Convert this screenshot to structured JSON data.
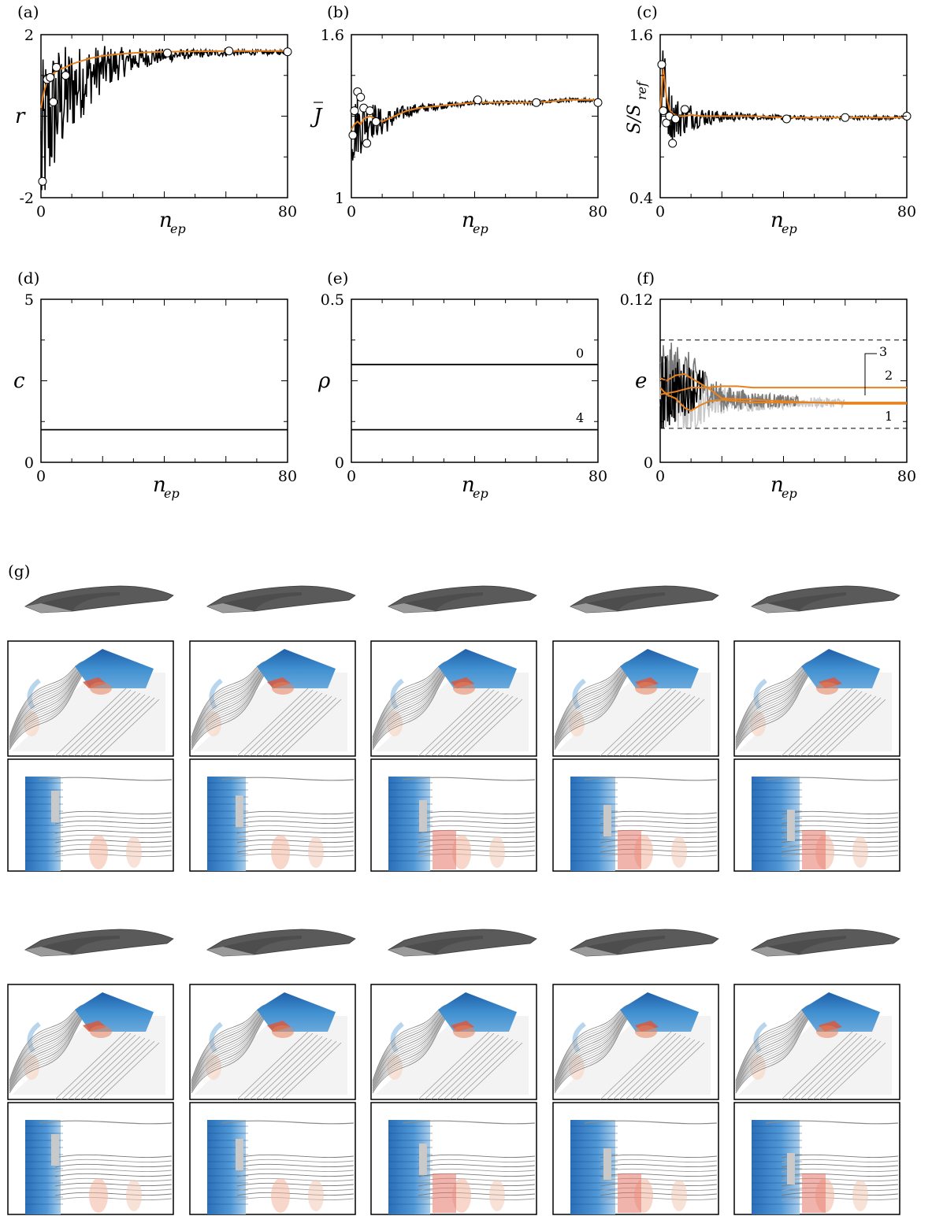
{
  "figure": {
    "colors": {
      "raw": "#000000",
      "avg": "#e8821e",
      "gray1": "#777777",
      "gray2": "#c8c8c8",
      "marker_fill": "#ffffff"
    },
    "g_label": "(g)"
  },
  "chart_data": [
    {
      "id": "a",
      "type": "line",
      "panel_label": "(a)",
      "ylabel": "r",
      "xlabel": "n",
      "xlabel_sub": "ep",
      "xlim": [
        0,
        80
      ],
      "ylim": [
        -2,
        2
      ],
      "xticks": [
        "0",
        "80"
      ],
      "yticks": [
        "-2",
        "2"
      ],
      "series": [
        {
          "x": [
            0,
            1,
            2,
            3,
            4,
            6,
            8,
            10,
            13,
            16,
            20,
            25,
            30,
            35,
            40,
            50,
            60,
            70,
            80
          ],
          "values": [
            0.2,
            0.6,
            0.85,
            0.95,
            1.05,
            1.15,
            1.2,
            1.28,
            1.35,
            1.42,
            1.48,
            1.52,
            1.55,
            1.57,
            1.58,
            1.59,
            1.6,
            1.6,
            1.6
          ]
        }
      ],
      "markers": {
        "x": [
          0.5,
          2,
          3,
          4,
          5,
          8,
          41,
          61,
          80
        ],
        "values": [
          -1.6,
          0.9,
          0.95,
          0.35,
          1.2,
          1.0,
          1.55,
          1.6,
          1.58
        ]
      }
    },
    {
      "id": "b",
      "type": "line",
      "panel_label": "(b)",
      "ylabel": "J",
      "xlabel": "n",
      "xlabel_sub": "ep",
      "xlim": [
        0,
        80
      ],
      "ylim": [
        1,
        1.6
      ],
      "xticks": [
        "0",
        "80"
      ],
      "yticks": [
        "1",
        "1.6"
      ],
      "series": [
        {
          "x": [
            0,
            1,
            2,
            3,
            4,
            6,
            8,
            10,
            14,
            18,
            22,
            30,
            40,
            50,
            60,
            70,
            80
          ],
          "values": [
            1.25,
            1.27,
            1.28,
            1.27,
            1.29,
            1.3,
            1.29,
            1.28,
            1.3,
            1.32,
            1.33,
            1.34,
            1.35,
            1.35,
            1.35,
            1.36,
            1.36
          ]
        }
      ],
      "markers": {
        "x": [
          0.5,
          1,
          2,
          3,
          4,
          5,
          6,
          8,
          41,
          60,
          80
        ],
        "values": [
          1.23,
          1.32,
          1.39,
          1.37,
          1.33,
          1.2,
          1.32,
          1.28,
          1.36,
          1.35,
          1.35
        ]
      }
    },
    {
      "id": "c",
      "type": "line",
      "panel_label": "(c)",
      "ylabel": "S/S",
      "ylabel_sub": "ref",
      "xlabel": "n",
      "xlabel_sub": "ep",
      "xlim": [
        0,
        80
      ],
      "ylim": [
        0.4,
        1.6
      ],
      "xticks": [
        "0",
        "80"
      ],
      "yticks": [
        "0.4",
        "1.6"
      ],
      "series": [
        {
          "x": [
            0,
            1,
            2,
            3,
            4,
            6,
            8,
            10,
            14,
            20,
            30,
            40,
            50,
            60,
            70,
            80
          ],
          "values": [
            1.05,
            1.35,
            1.15,
            1.05,
            1.02,
            1.0,
            1.0,
            1.01,
            1.0,
            1.0,
            1.0,
            0.99,
            0.99,
            0.99,
            0.99,
            0.99
          ]
        }
      ],
      "markers": {
        "x": [
          0.5,
          1,
          2,
          3,
          4,
          5,
          8,
          41,
          60,
          80
        ],
        "values": [
          1.38,
          1.04,
          0.95,
          1.0,
          0.8,
          0.98,
          1.05,
          0.98,
          0.99,
          1.0
        ]
      }
    },
    {
      "id": "d",
      "type": "line",
      "panel_label": "(d)",
      "ylabel": "c",
      "xlabel": "n",
      "xlabel_sub": "ep",
      "xlim": [
        0,
        80
      ],
      "ylim": [
        0,
        5
      ],
      "xticks": [
        "0",
        "80"
      ],
      "yticks": [
        "0",
        "5"
      ],
      "series": [
        {
          "x": [
            0,
            80
          ],
          "values": [
            1,
            1
          ]
        }
      ]
    },
    {
      "id": "e",
      "type": "line",
      "panel_label": "(e)",
      "ylabel": "ρ",
      "xlabel": "n",
      "xlabel_sub": "ep",
      "xlim": [
        0,
        80
      ],
      "ylim": [
        0,
        0.5
      ],
      "xticks": [
        "0",
        "80"
      ],
      "yticks": [
        "0",
        "0.5"
      ],
      "series": [
        {
          "x": [
            0,
            80
          ],
          "values": [
            0.3,
            0.3
          ],
          "label": "0"
        },
        {
          "x": [
            0,
            80
          ],
          "values": [
            0.1,
            0.1
          ],
          "label": "4"
        }
      ]
    },
    {
      "id": "f",
      "type": "line",
      "panel_label": "(f)",
      "ylabel": "e",
      "xlabel": "n",
      "xlabel_sub": "ep",
      "xlim": [
        0,
        80
      ],
      "ylim": [
        0,
        0.12
      ],
      "xticks": [
        "0",
        "80"
      ],
      "yticks": [
        "0",
        "0.12"
      ],
      "bounds": [
        0.09,
        0.025
      ],
      "series": [
        {
          "label": "1",
          "x": [
            0,
            2,
            5,
            8,
            10,
            13,
            16,
            20,
            30,
            40,
            50,
            60,
            70,
            80
          ],
          "values": [
            0.055,
            0.05,
            0.047,
            0.04,
            0.038,
            0.042,
            0.045,
            0.046,
            0.044,
            0.044,
            0.044,
            0.044,
            0.044,
            0.044
          ]
        },
        {
          "label": "2",
          "x": [
            0,
            2,
            5,
            8,
            10,
            13,
            16,
            20,
            30,
            40,
            50,
            60,
            70,
            80
          ],
          "values": [
            0.062,
            0.06,
            0.064,
            0.065,
            0.062,
            0.058,
            0.054,
            0.047,
            0.046,
            0.045,
            0.044,
            0.043,
            0.043,
            0.043
          ]
        },
        {
          "label": "3",
          "x": [
            0,
            5,
            10,
            15,
            20,
            25,
            30,
            40,
            50,
            60,
            70,
            80
          ],
          "values": [
            0.05,
            0.052,
            0.055,
            0.055,
            0.056,
            0.056,
            0.055,
            0.055,
            0.055,
            0.055,
            0.055,
            0.055
          ]
        }
      ]
    }
  ]
}
